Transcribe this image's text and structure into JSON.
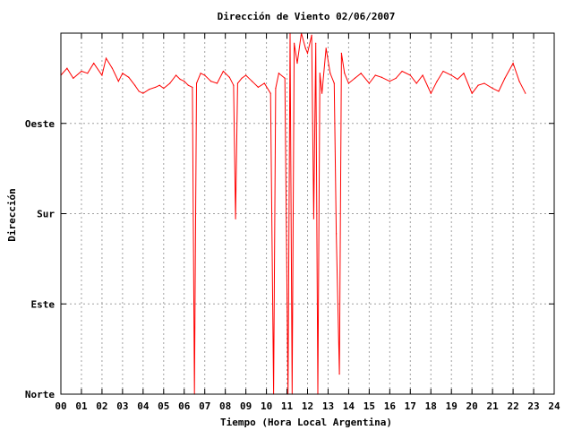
{
  "chart_data": {
    "type": "line",
    "title": "Dirección de Viento 02/06/2007",
    "xlabel": "Tiempo (Hora Local Argentina)",
    "ylabel": "Dirección",
    "xlim": [
      0,
      24
    ],
    "ylim": [
      0,
      360
    ],
    "x_ticks": [
      0,
      1,
      2,
      3,
      4,
      5,
      6,
      7,
      8,
      9,
      10,
      11,
      12,
      13,
      14,
      15,
      16,
      17,
      18,
      19,
      20,
      21,
      22,
      23,
      24
    ],
    "x_tick_labels": [
      "00",
      "01",
      "02",
      "03",
      "04",
      "05",
      "06",
      "07",
      "08",
      "09",
      "10",
      "11",
      "12",
      "13",
      "14",
      "15",
      "16",
      "17",
      "18",
      "19",
      "20",
      "21",
      "22",
      "23",
      "24"
    ],
    "y_ticks": [
      0,
      90,
      180,
      270
    ],
    "y_tick_labels": [
      "Norte",
      "Este",
      "Sur",
      "Oeste"
    ],
    "grid": true,
    "series_color": "#ff0000",
    "series": [
      {
        "x": [
          0.0,
          0.3,
          0.6,
          1.0,
          1.3,
          1.6,
          2.0,
          2.2,
          2.5,
          2.8,
          3.0,
          3.3,
          3.6,
          3.8,
          4.0,
          4.3,
          4.6,
          4.8,
          5.0,
          5.3,
          5.6,
          5.8,
          6.0,
          6.2,
          6.4,
          6.5,
          6.6,
          6.8,
          7.0,
          7.3,
          7.6,
          7.9,
          8.2,
          8.4,
          8.5,
          8.6,
          8.8,
          9.0,
          9.3,
          9.6,
          9.9,
          10.2,
          10.35,
          10.45,
          10.6,
          10.9,
          11.05,
          11.15,
          11.25,
          11.35,
          11.5,
          11.7,
          11.9,
          12.0,
          12.2,
          12.3,
          12.4,
          12.5,
          12.6,
          12.7,
          12.9,
          13.1,
          13.3,
          13.4,
          13.55,
          13.65,
          13.8,
          14.0,
          14.3,
          14.6,
          15.0,
          15.3,
          15.6,
          16.0,
          16.3,
          16.6,
          17.0,
          17.3,
          17.6,
          18.0,
          18.3,
          18.6,
          19.0,
          19.3,
          19.6,
          20.0,
          20.3,
          20.6,
          21.0,
          21.3,
          21.6,
          22.0,
          22.3,
          22.6
        ],
        "y": [
          318,
          325,
          315,
          322,
          320,
          330,
          318,
          335,
          325,
          312,
          320,
          316,
          308,
          302,
          300,
          304,
          306,
          308,
          305,
          310,
          318,
          314,
          312,
          308,
          306,
          0,
          310,
          320,
          318,
          312,
          310,
          322,
          316,
          308,
          175,
          310,
          315,
          318,
          312,
          306,
          310,
          300,
          0,
          305,
          320,
          315,
          0,
          360,
          0,
          350,
          330,
          360,
          345,
          340,
          358,
          175,
          350,
          0,
          320,
          300,
          345,
          320,
          310,
          160,
          20,
          340,
          320,
          310,
          315,
          320,
          310,
          318,
          316,
          312,
          315,
          322,
          318,
          310,
          318,
          300,
          312,
          322,
          318,
          314,
          320,
          300,
          308,
          310,
          305,
          302,
          315,
          330,
          312,
          300
        ]
      }
    ]
  }
}
